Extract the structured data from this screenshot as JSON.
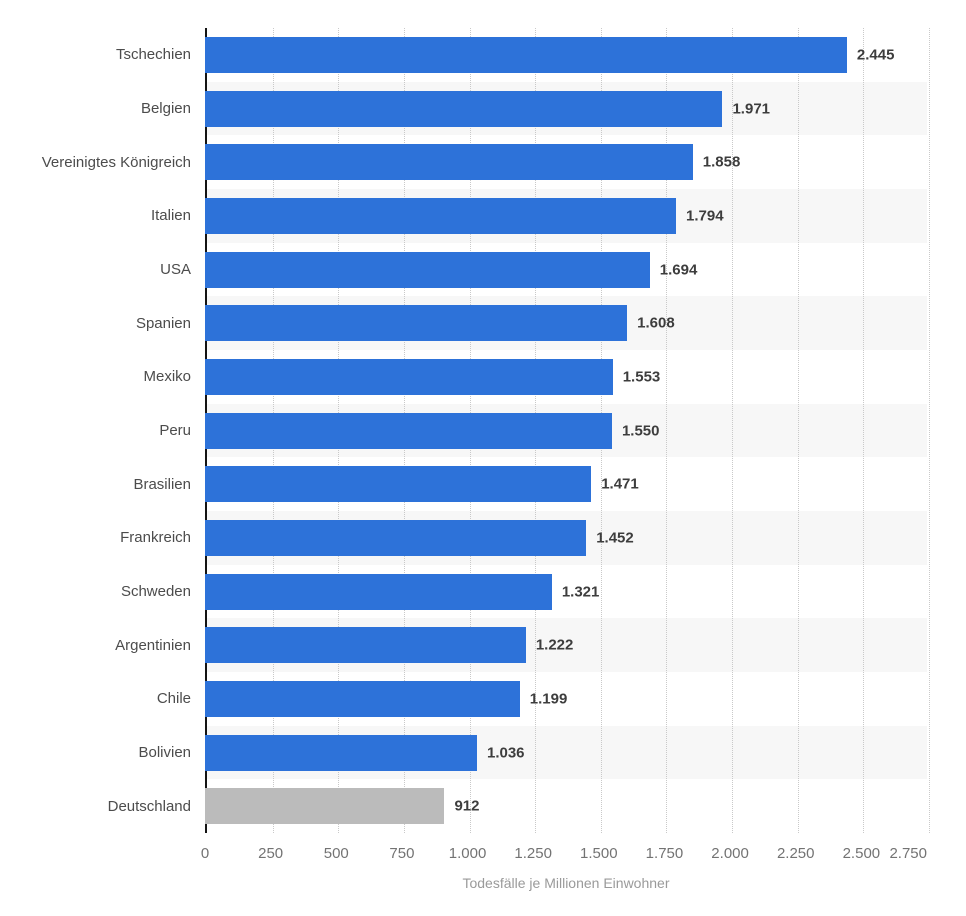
{
  "chart_data": {
    "type": "bar",
    "orientation": "horizontal",
    "title": "",
    "xlabel": "Todesfälle je Millionen Einwohner",
    "ylabel": "",
    "categories": [
      "Tschechien",
      "Belgien",
      "Vereinigtes Königreich",
      "Italien",
      "USA",
      "Spanien",
      "Mexiko",
      "Peru",
      "Brasilien",
      "Frankreich",
      "Schweden",
      "Argentinien",
      "Chile",
      "Bolivien",
      "Deutschland"
    ],
    "values": [
      2445,
      1971,
      1858,
      1794,
      1694,
      1608,
      1553,
      1550,
      1471,
      1452,
      1321,
      1222,
      1199,
      1036,
      912
    ],
    "value_labels": [
      "2.445",
      "1.971",
      "1.858",
      "1.794",
      "1.694",
      "1.608",
      "1.553",
      "1.550",
      "1.471",
      "1.452",
      "1.321",
      "1.222",
      "1.199",
      "1.036",
      "912"
    ],
    "highlight_category": "Deutschland",
    "xlim": [
      0,
      2750
    ],
    "x_ticks": [
      "0",
      "250",
      "500",
      "750",
      "1.000",
      "1.250",
      "1.500",
      "1.750",
      "2.000",
      "2.250",
      "2.500",
      "2.750"
    ],
    "x_tick_values": [
      0,
      250,
      500,
      750,
      1000,
      1250,
      1500,
      1750,
      2000,
      2250,
      2500,
      2750
    ],
    "grid": "dotted-vertical",
    "legend": "none",
    "row_striping": "alternate",
    "colors": {
      "bar": "#2d72d9",
      "highlight_bar": "#bbbbbb",
      "stripe": "#f7f7f7",
      "axis_line": "#141414",
      "gridline": "#c9c9c9",
      "category_label": "#4c4c4c",
      "value_label": "#3d3d3d",
      "tick_label": "#737373",
      "axis_title": "#9a9a9a",
      "background": "#ffffff"
    }
  }
}
